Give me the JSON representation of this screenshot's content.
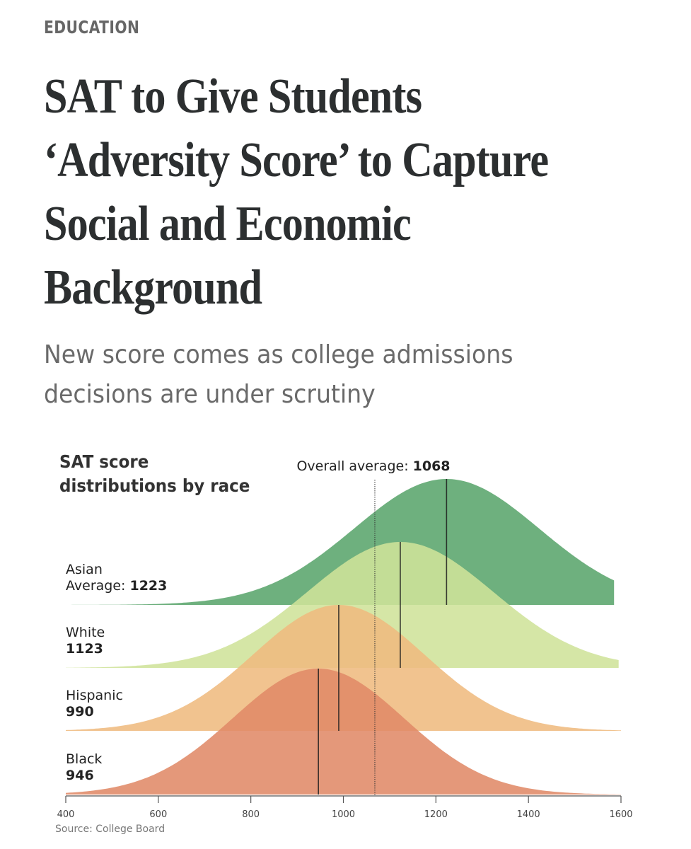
{
  "section": "EDUCATION",
  "headline_lines": [
    "SAT to Give Students",
    "‘Adversity Score’ to Capture",
    "Social and Economic",
    "Background"
  ],
  "dek_lines": [
    "New score comes as college admissions",
    "decisions are under scrutiny"
  ],
  "chart_data": {
    "type": "area",
    "title": "SAT score distributions by race",
    "title_lines": [
      "SAT score",
      "distributions by race"
    ],
    "xlabel": "",
    "ylabel": "",
    "xlim": [
      400,
      1600
    ],
    "x_ticks": [
      400,
      600,
      800,
      1000,
      1200,
      1400,
      1600
    ],
    "x_tick_labels": [
      "400",
      "600",
      "800",
      "1000",
      "1200",
      "1400",
      "1600"
    ],
    "overall_average": {
      "label": "Overall average: ",
      "value": 1068,
      "value_label": "1068"
    },
    "series": [
      {
        "name": "Asian",
        "label_line1": "Asian",
        "label_prefix": "Average: ",
        "value_label": "1223",
        "mean": 1223,
        "sd": 200,
        "x_end": 1585,
        "color": "#6eb07e"
      },
      {
        "name": "White",
        "label_line1": "White",
        "label_prefix": "",
        "value_label": "1123",
        "mean": 1123,
        "sd": 200,
        "x_end": 1595,
        "color": "#cfe29a"
      },
      {
        "name": "Hispanic",
        "label_line1": "Hispanic",
        "label_prefix": "",
        "value_label": "990",
        "mean": 990,
        "sd": 185,
        "x_end": 1600,
        "color": "#efbb7f"
      },
      {
        "name": "Black",
        "label_line1": "Black",
        "label_prefix": "",
        "value_label": "946",
        "mean": 946,
        "sd": 185,
        "x_end": 1600,
        "color": "#e08a68"
      }
    ],
    "grid": false,
    "legend": "inline-left"
  },
  "source": "Source: College Board"
}
